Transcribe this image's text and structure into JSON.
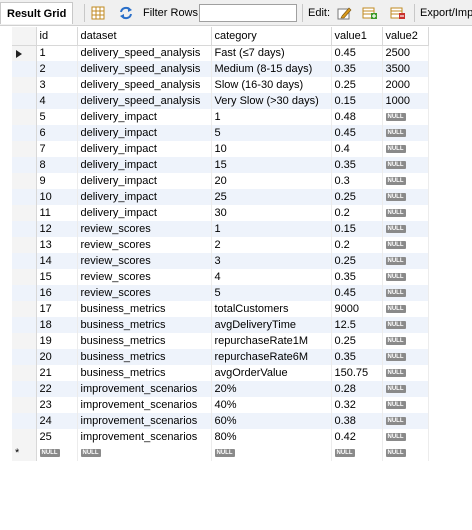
{
  "toolbar": {
    "title": "Result Grid",
    "filter_label": "Filter Rows:",
    "filter_value": "",
    "edit_label": "Edit:",
    "export_label": "Export/Imp"
  },
  "null_label": "NULL",
  "columns": [
    "id",
    "dataset",
    "category",
    "value1",
    "value2"
  ],
  "rows": [
    [
      "1",
      "delivery_speed_analysis",
      "Fast (≤7 days)",
      "0.45",
      "2500"
    ],
    [
      "2",
      "delivery_speed_analysis",
      "Medium (8-15 days)",
      "0.35",
      "3500"
    ],
    [
      "3",
      "delivery_speed_analysis",
      "Slow (16-30 days)",
      "0.25",
      "2000"
    ],
    [
      "4",
      "delivery_speed_analysis",
      "Very Slow (>30 days)",
      "0.15",
      "1000"
    ],
    [
      "5",
      "delivery_impact",
      "1",
      "0.48",
      null
    ],
    [
      "6",
      "delivery_impact",
      "5",
      "0.45",
      null
    ],
    [
      "7",
      "delivery_impact",
      "10",
      "0.4",
      null
    ],
    [
      "8",
      "delivery_impact",
      "15",
      "0.35",
      null
    ],
    [
      "9",
      "delivery_impact",
      "20",
      "0.3",
      null
    ],
    [
      "10",
      "delivery_impact",
      "25",
      "0.25",
      null
    ],
    [
      "11",
      "delivery_impact",
      "30",
      "0.2",
      null
    ],
    [
      "12",
      "review_scores",
      "1",
      "0.15",
      null
    ],
    [
      "13",
      "review_scores",
      "2",
      "0.2",
      null
    ],
    [
      "14",
      "review_scores",
      "3",
      "0.25",
      null
    ],
    [
      "15",
      "review_scores",
      "4",
      "0.35",
      null
    ],
    [
      "16",
      "review_scores",
      "5",
      "0.45",
      null
    ],
    [
      "17",
      "business_metrics",
      "totalCustomers",
      "9000",
      null
    ],
    [
      "18",
      "business_metrics",
      "avgDeliveryTime",
      "12.5",
      null
    ],
    [
      "19",
      "business_metrics",
      "repurchaseRate1M",
      "0.25",
      null
    ],
    [
      "20",
      "business_metrics",
      "repurchaseRate6M",
      "0.35",
      null
    ],
    [
      "21",
      "business_metrics",
      "avgOrderValue",
      "150.75",
      null
    ],
    [
      "22",
      "improvement_scenarios",
      "20%",
      "0.28",
      null
    ],
    [
      "23",
      "improvement_scenarios",
      "40%",
      "0.32",
      null
    ],
    [
      "24",
      "improvement_scenarios",
      "60%",
      "0.38",
      null
    ],
    [
      "25",
      "improvement_scenarios",
      "80%",
      "0.42",
      null
    ]
  ]
}
